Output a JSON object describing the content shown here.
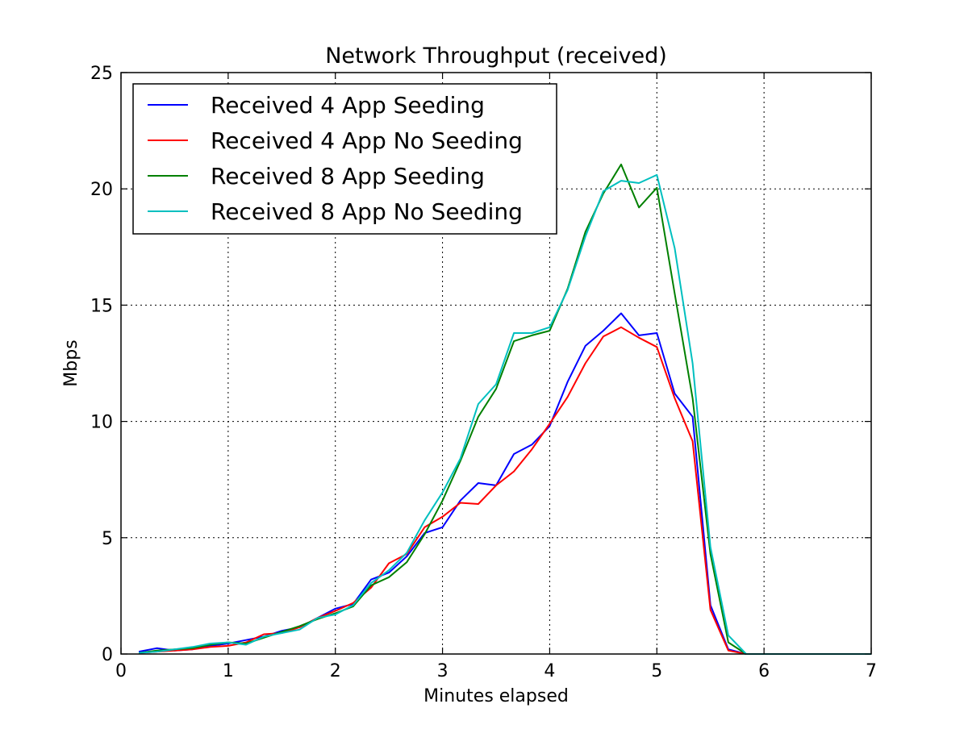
{
  "chart_data": {
    "type": "line",
    "title": "Network Throughput (received)",
    "xlabel": "Minutes elapsed",
    "ylabel": "Mbps",
    "xlim": [
      0,
      7
    ],
    "ylim": [
      0,
      25
    ],
    "xticks": [
      0,
      1,
      2,
      3,
      4,
      5,
      6,
      7
    ],
    "yticks": [
      0,
      5,
      10,
      15,
      20,
      25
    ],
    "grid": true,
    "legend_position": "upper-left",
    "x": [
      0.1667,
      0.3333,
      0.5,
      0.6667,
      0.8333,
      1.0,
      1.1667,
      1.3333,
      1.5,
      1.6667,
      1.8333,
      2.0,
      2.1667,
      2.3333,
      2.5,
      2.6667,
      2.8333,
      3.0,
      3.1667,
      3.3333,
      3.5,
      3.6667,
      3.8333,
      4.0,
      4.1667,
      4.3333,
      4.5,
      4.6667,
      4.8333,
      5.0,
      5.1667,
      5.3333,
      5.5,
      5.6667,
      5.8333,
      6.0,
      6.1667,
      6.3333,
      6.5,
      6.6667,
      6.8333,
      7.0
    ],
    "series": [
      {
        "name": "Received 4 App Seeding",
        "color": "#0000ff",
        "values": [
          0.1,
          0.25,
          0.15,
          0.2,
          0.35,
          0.45,
          0.6,
          0.75,
          1.0,
          1.15,
          1.55,
          1.95,
          2.15,
          3.2,
          3.5,
          4.2,
          5.2,
          5.45,
          6.6,
          7.35,
          7.25,
          8.6,
          9.0,
          9.8,
          11.7,
          13.25,
          13.9,
          14.65,
          13.7,
          13.8,
          11.2,
          10.2,
          2.1,
          0.2,
          0.0,
          0.0,
          0.0,
          0.0,
          0.0,
          0.0,
          0.0,
          0.0
        ]
      },
      {
        "name": "Received 4 App No Seeding",
        "color": "#ff0000",
        "values": [
          0.05,
          0.1,
          0.15,
          0.2,
          0.3,
          0.35,
          0.5,
          0.85,
          0.9,
          1.15,
          1.55,
          1.85,
          2.2,
          2.85,
          3.9,
          4.3,
          5.45,
          5.9,
          6.5,
          6.45,
          7.25,
          7.85,
          8.8,
          9.9,
          11.05,
          12.5,
          13.65,
          14.05,
          13.6,
          13.2,
          11.0,
          9.15,
          1.9,
          0.15,
          0.0,
          0.0,
          0.0,
          0.0,
          0.0,
          0.0,
          0.0,
          0.0
        ]
      },
      {
        "name": "Received 8 App Seeding",
        "color": "#008000",
        "values": [
          0.05,
          0.15,
          0.2,
          0.25,
          0.4,
          0.5,
          0.45,
          0.7,
          0.95,
          1.2,
          1.5,
          1.75,
          2.05,
          2.95,
          3.3,
          3.95,
          5.15,
          6.6,
          8.3,
          10.2,
          11.4,
          13.45,
          13.7,
          13.9,
          15.7,
          18.15,
          19.8,
          21.05,
          19.2,
          20.05,
          15.5,
          11.0,
          4.3,
          0.5,
          0.0,
          0.0,
          0.0,
          0.0,
          0.0,
          0.0,
          0.0,
          0.0
        ]
      },
      {
        "name": "Received 8 App No Seeding",
        "color": "#00bfbf",
        "values": [
          0.05,
          0.1,
          0.2,
          0.3,
          0.45,
          0.5,
          0.4,
          0.75,
          0.9,
          1.05,
          1.55,
          1.7,
          2.1,
          3.05,
          3.6,
          4.35,
          5.75,
          6.95,
          8.4,
          10.75,
          11.6,
          13.8,
          13.8,
          14.05,
          15.65,
          17.95,
          19.9,
          20.35,
          20.25,
          20.6,
          17.45,
          12.5,
          4.6,
          0.8,
          0.0,
          0.0,
          0.0,
          0.0,
          0.0,
          0.0,
          0.0,
          0.0
        ]
      }
    ]
  }
}
